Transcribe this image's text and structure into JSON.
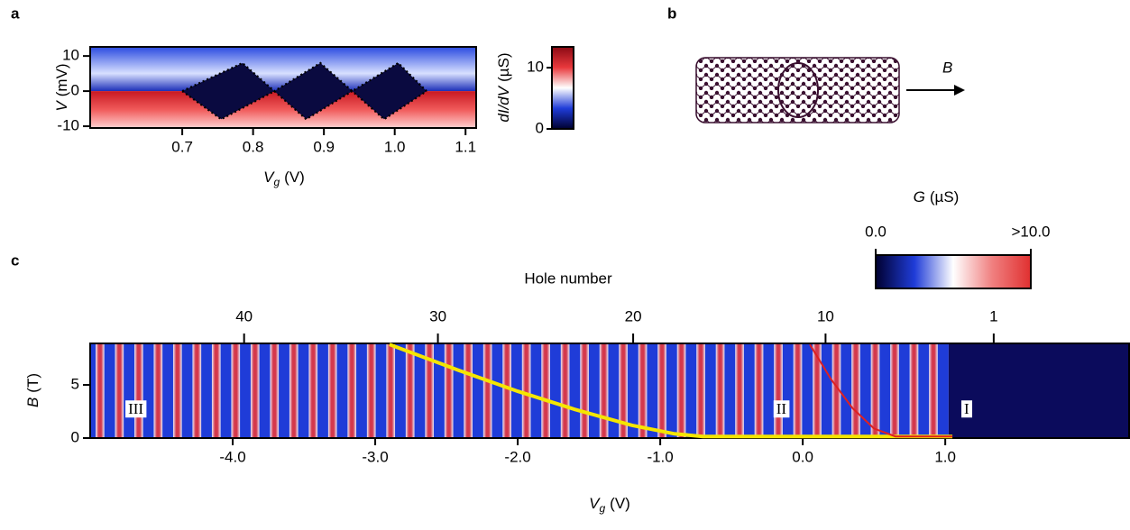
{
  "panel_labels": [
    "a",
    "b",
    "c"
  ],
  "schematic": {
    "field_label": "B"
  },
  "chart_data": [
    {
      "type": "heatmap",
      "xlabel": {
        "symbol": "V",
        "sub": "g",
        "unit": "(V)"
      },
      "ylabel": {
        "symbol": "V",
        "unit": "(mV)"
      },
      "xlim": [
        0.57,
        1.115
      ],
      "ylim": [
        -10.5,
        12.6
      ],
      "xticks": [
        0.7,
        0.8,
        0.9,
        {
          "value": 1.0,
          "label": "1.0"
        },
        1.1
      ],
      "yticks": [
        -10,
        0,
        10
      ],
      "colorbar": {
        "label": {
          "symbol": "dI/dV",
          "unit": "(µS)"
        },
        "lim": [
          0,
          13.4
        ],
        "ticks": [
          0,
          10
        ],
        "colors": [
          "#000030",
          "#1f3cd8",
          "#ffffff",
          "#e8383c",
          "#8a0a14"
        ]
      },
      "lines": [
        {
          "color": "#000000",
          "x": [
            0.7,
            0.785,
            0.83,
            0.895,
            0.94,
            1.005,
            1.045
          ],
          "y": [
            0,
            8,
            0,
            8,
            0,
            8,
            0
          ]
        },
        {
          "color": "#000000",
          "x": [
            0.7,
            0.755,
            0.83,
            0.875,
            0.94,
            0.985,
            1.045
          ],
          "y": [
            0,
            -8,
            0,
            -8,
            0,
            -8,
            0
          ]
        }
      ]
    },
    {
      "type": "heatmap",
      "xlabel": {
        "symbol": "V",
        "sub": "g",
        "unit": "(V)"
      },
      "ylabel": {
        "symbol": "B",
        "unit": "(T)"
      },
      "xlim": [
        -5.0,
        2.29
      ],
      "ylim": [
        0,
        8.9
      ],
      "xticks": [
        {
          "value": -4,
          "label": "-4.0"
        },
        {
          "value": -3,
          "label": "-3.0"
        },
        {
          "value": -2,
          "label": "-2.0"
        },
        {
          "value": -1,
          "label": "-1.0"
        },
        {
          "value": 0,
          "label": "0.0"
        },
        {
          "value": 1,
          "label": "1.0"
        }
      ],
      "yticks": [
        0,
        5
      ],
      "top_axis": {
        "label": "Hole number",
        "ticks": [
          40,
          30,
          20,
          10,
          1
        ],
        "positions": [
          -3.92,
          -2.56,
          -1.19,
          0.16,
          1.34
        ]
      },
      "colorbar": {
        "label": {
          "symbol": "G",
          "unit": "(µS)"
        },
        "lim": [
          0,
          10
        ],
        "ticks": [
          {
            "value": 0,
            "label": "0.0"
          },
          {
            "value": 10,
            "label": ">10.0"
          }
        ],
        "colors": [
          "#000030",
          "#1f3cd8",
          "#ffffff",
          "#f08080",
          "#e03030"
        ]
      },
      "lines": [
        {
          "color": "#f5e600",
          "x": [
            -2.9,
            -2.4,
            -2.0,
            -1.6,
            -1.2,
            -0.9,
            -0.7,
            1.05
          ],
          "y": [
            8.8,
            6.3,
            4.4,
            2.7,
            1.2,
            0.4,
            0.15,
            0.15
          ]
        },
        {
          "color": "#e02020",
          "x": [
            0.05,
            0.2,
            0.35,
            0.5,
            0.65,
            1.05
          ],
          "y": [
            8.8,
            5.5,
            2.8,
            0.9,
            0.15,
            0.15
          ]
        }
      ],
      "annotations": [
        {
          "text": "III",
          "x": -4.68,
          "y": 2.6
        },
        {
          "text": "II",
          "x": -0.15,
          "y": 2.6
        },
        {
          "text": "I",
          "x": 1.15,
          "y": 2.6
        }
      ]
    }
  ]
}
